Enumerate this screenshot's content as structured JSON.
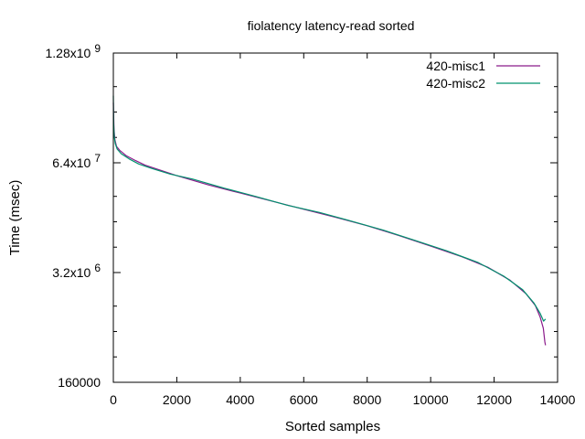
{
  "chart_data": {
    "type": "line",
    "title": "fiolatency latency-read sorted",
    "xlabel": "Sorted samples",
    "ylabel": "Time (msec)",
    "xlim": [
      0,
      14000
    ],
    "ylim": [
      160000,
      1280000000
    ],
    "yscale": "log",
    "grid": false,
    "legend": "top-right",
    "x_ticks": [
      {
        "value": 0,
        "label": "0"
      },
      {
        "value": 2000,
        "label": "2000"
      },
      {
        "value": 4000,
        "label": "4000"
      },
      {
        "value": 6000,
        "label": "6000"
      },
      {
        "value": 8000,
        "label": "8000"
      },
      {
        "value": 10000,
        "label": "10000"
      },
      {
        "value": 12000,
        "label": "12000"
      },
      {
        "value": 14000,
        "label": "14000"
      }
    ],
    "y_ticks": [
      {
        "value": 160000,
        "mantissa": "160000",
        "exp": ""
      },
      {
        "value": 3200000,
        "mantissa": "3.2x10",
        "exp": "6"
      },
      {
        "value": 64000000,
        "mantissa": "6.4x10",
        "exp": "7"
      },
      {
        "value": 1280000000,
        "mantissa": "1.28x10",
        "exp": "9"
      }
    ],
    "y_minor_ticks": [
      320000,
      640000,
      1280000,
      6400000,
      12800000,
      25600000,
      128000000,
      256000000,
      512000000
    ],
    "series": [
      {
        "name": "420-misc1",
        "color": "#8b1a8b",
        "x": [
          0,
          20,
          50,
          100,
          200,
          400,
          700,
          1000,
          1500,
          2000,
          3000,
          4000,
          5000,
          6000,
          7000,
          8000,
          9000,
          10000,
          11000,
          11800,
          12500,
          13000,
          13300,
          13450,
          13550,
          13600,
          13620
        ],
        "y": [
          330000000,
          160000000,
          120000000,
          100000000,
          90000000,
          78000000,
          68000000,
          60000000,
          52000000,
          45000000,
          35000000,
          28000000,
          22500000,
          18000000,
          14500000,
          11500000,
          8800000,
          6600000,
          4900000,
          3700000,
          2600000,
          1800000,
          1300000,
          950000,
          700000,
          480000,
          440000
        ]
      },
      {
        "name": "420-misc2",
        "color": "#00926e",
        "x": [
          0,
          10,
          30,
          60,
          120,
          250,
          500,
          800,
          1200,
          1800,
          2500,
          3500,
          4500,
          5500,
          6500,
          7500,
          8500,
          9500,
          10500,
          11500,
          12300,
          12900,
          13250,
          13450,
          13560,
          13620
        ],
        "y": [
          400000000,
          190000000,
          130000000,
          108000000,
          93000000,
          82000000,
          71000000,
          62000000,
          55000000,
          47000000,
          41000000,
          32000000,
          25500000,
          20000000,
          16500000,
          13000000,
          10200000,
          7700000,
          5800000,
          4200000,
          2900000,
          2000000,
          1400000,
          1050000,
          850000,
          900000
        ]
      }
    ]
  }
}
